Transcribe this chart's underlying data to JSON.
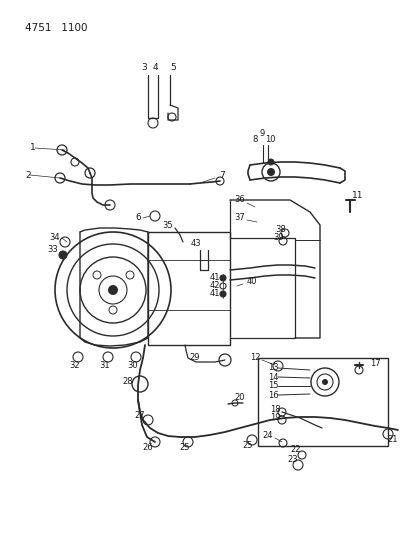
{
  "bg_color": "#ffffff",
  "line_color": "#2a2a2a",
  "text_color": "#1a1a1a",
  "fig_width": 4.08,
  "fig_height": 5.33,
  "dpi": 100,
  "title": "4751   1100"
}
